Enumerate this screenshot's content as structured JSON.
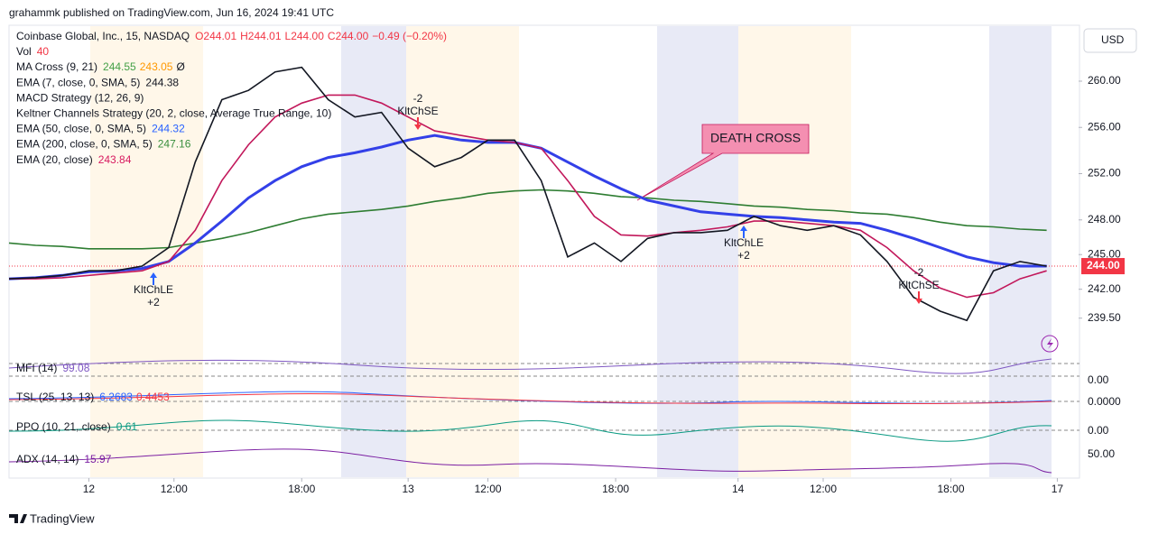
{
  "header": "grahammk published on TradingView.com, Jun 16, 2024 19:41 UTC",
  "currency_button": "USD",
  "footer": "TradingView",
  "chart_data": {
    "type": "line",
    "legend": [
      {
        "label": "Coinbase Global, Inc., 15, NASDAQ",
        "parts": [
          {
            "text": "O244.01",
            "color": "#f23645"
          },
          {
            "text": "H244.01",
            "color": "#f23645"
          },
          {
            "text": "L244.00",
            "color": "#f23645"
          },
          {
            "text": "C244.00",
            "color": "#f23645"
          },
          {
            "text": "−0.49 (−0.20%)",
            "color": "#f23645"
          }
        ]
      },
      {
        "label": "Vol",
        "parts": [
          {
            "text": "40",
            "color": "#f23645"
          }
        ]
      },
      {
        "label": "MA Cross (9, 21)",
        "parts": [
          {
            "text": "244.55",
            "color": "#43a047"
          },
          {
            "text": "243.05",
            "color": "#ff9800"
          },
          {
            "text": "Ø",
            "color": "#131722"
          }
        ]
      },
      {
        "label": "EMA (7, close, 0, SMA, 5)",
        "parts": [
          {
            "text": "244.38",
            "color": "#131722"
          }
        ]
      },
      {
        "label": "MACD Strategy (12, 26, 9)",
        "parts": []
      },
      {
        "label": "Keltner Channels Strategy (20, 2, close, Average True Range, 10)",
        "parts": []
      },
      {
        "label": "EMA (50, close, 0, SMA, 5)",
        "parts": [
          {
            "text": "244.32",
            "color": "#2962ff"
          }
        ]
      },
      {
        "label": "EMA (200, close, 0, SMA, 5)",
        "parts": [
          {
            "text": "247.16",
            "color": "#388e3c"
          }
        ]
      },
      {
        "label": "EMA (20, close)",
        "parts": [
          {
            "text": "243.84",
            "color": "#d81b60"
          }
        ]
      }
    ],
    "x": [
      0,
      5,
      10,
      15,
      20,
      25,
      30,
      35,
      40,
      45,
      50,
      55,
      60,
      65,
      70,
      75,
      80,
      85,
      90,
      95,
      100,
      105,
      110,
      115,
      120,
      125,
      130,
      135,
      140,
      145,
      150,
      155,
      160,
      165,
      170,
      175,
      180,
      185,
      190,
      195
    ],
    "series": [
      {
        "color": "#2e7d32",
        "values": [
          246.0,
          245.8,
          245.7,
          245.5,
          245.5,
          245.5,
          245.6,
          246.0,
          246.4,
          246.9,
          247.5,
          248.1,
          248.5,
          248.7,
          248.9,
          249.2,
          249.6,
          249.9,
          250.3,
          250.5,
          250.6,
          250.5,
          250.3,
          250.0,
          249.9,
          249.7,
          249.6,
          249.4,
          249.2,
          249.1,
          248.9,
          248.8,
          248.6,
          248.5,
          248.2,
          247.8,
          247.5,
          247.4,
          247.2,
          247.1
        ]
      },
      {
        "color": "#3340e8",
        "values": [
          242.9,
          243.0,
          243.2,
          243.5,
          243.6,
          243.8,
          244.4,
          246.0,
          247.9,
          249.9,
          251.4,
          252.6,
          253.4,
          253.8,
          254.3,
          254.9,
          255.3,
          254.9,
          254.7,
          254.7,
          254.2,
          253.0,
          251.8,
          250.7,
          249.7,
          249.2,
          248.7,
          248.5,
          248.3,
          248.2,
          248.0,
          247.8,
          247.7,
          247.1,
          246.4,
          245.6,
          244.8,
          244.3,
          244.0,
          244.0
        ]
      },
      {
        "color": "#c2185b",
        "values": [
          242.9,
          242.9,
          243.0,
          243.2,
          243.4,
          243.6,
          244.4,
          247.1,
          251.4,
          254.5,
          256.9,
          258.1,
          258.8,
          258.8,
          258.1,
          256.9,
          255.7,
          255.3,
          254.9,
          254.7,
          254.2,
          251.4,
          248.3,
          246.7,
          246.6,
          246.9,
          247.1,
          247.4,
          247.9,
          247.9,
          247.7,
          247.5,
          247.1,
          245.6,
          243.6,
          242.1,
          241.3,
          241.7,
          242.9,
          243.6
        ]
      },
      {
        "color": "#131722",
        "values": [
          242.9,
          243.0,
          243.2,
          243.6,
          243.6,
          244.0,
          245.6,
          253.0,
          258.4,
          259.2,
          260.8,
          261.2,
          258.4,
          256.9,
          257.3,
          254.2,
          252.6,
          253.4,
          254.9,
          254.9,
          251.4,
          244.8,
          246.0,
          244.4,
          246.4,
          246.9,
          246.9,
          247.1,
          248.3,
          247.5,
          247.1,
          247.5,
          246.7,
          244.4,
          241.3,
          240.1,
          239.3,
          243.6,
          244.4,
          244.0
        ]
      }
    ],
    "xlim": [
      0,
      201
    ],
    "xticks": [
      {
        "value": 15,
        "label": "12"
      },
      {
        "value": 31,
        "label": "12:00"
      },
      {
        "value": 55,
        "label": "18:00"
      },
      {
        "value": 75,
        "label": "13"
      },
      {
        "value": 90,
        "label": "12:00"
      },
      {
        "value": 114,
        "label": "18:00"
      },
      {
        "value": 137,
        "label": "14"
      },
      {
        "value": 153,
        "label": "12:00"
      },
      {
        "value": 177,
        "label": "18:00"
      },
      {
        "value": 197,
        "label": "17"
      }
    ],
    "ylim": [
      236.2,
      263.9
    ],
    "yticks": [
      {
        "value": 260,
        "label": "260.00"
      },
      {
        "value": 256,
        "label": "256.00"
      },
      {
        "value": 252,
        "label": "252.00"
      },
      {
        "value": 248,
        "label": "248.00"
      },
      {
        "value": 245,
        "label": "245.00"
      },
      {
        "value": 242,
        "label": "242.00"
      },
      {
        "value": 239.5,
        "label": "239.50"
      }
    ],
    "last_price": {
      "value": 244,
      "label": "244.00"
    },
    "annotations": [
      {
        "text": "DEATH CROSS"
      },
      {
        "text": "KltChLE",
        "sub": "+2"
      },
      {
        "text": "KltChSE",
        "sub": "-2"
      },
      {
        "text": "KltChLE",
        "sub": "+2"
      },
      {
        "text": "KltChSE",
        "sub": "-2"
      }
    ],
    "panes": [
      {
        "label": "MFI (14)",
        "parts": [
          {
            "text": "99.08",
            "color": "#7e57c2"
          }
        ],
        "scale": "0.00"
      },
      {
        "label": "TSL (25, 13, 13)",
        "parts": [
          {
            "text": "6.2683",
            "color": "#2962ff"
          },
          {
            "text": "0.4453",
            "color": "#f23645"
          }
        ],
        "scale": "0.0000"
      },
      {
        "label": "PPO (10, 21, close)",
        "parts": [
          {
            "text": "0.61",
            "color": "#089981"
          }
        ],
        "scale": "0.00"
      },
      {
        "label": "ADX (14, 14)",
        "parts": [
          {
            "text": "15.97",
            "color": "#7b1fa2"
          }
        ],
        "scale": "50.00"
      }
    ]
  }
}
